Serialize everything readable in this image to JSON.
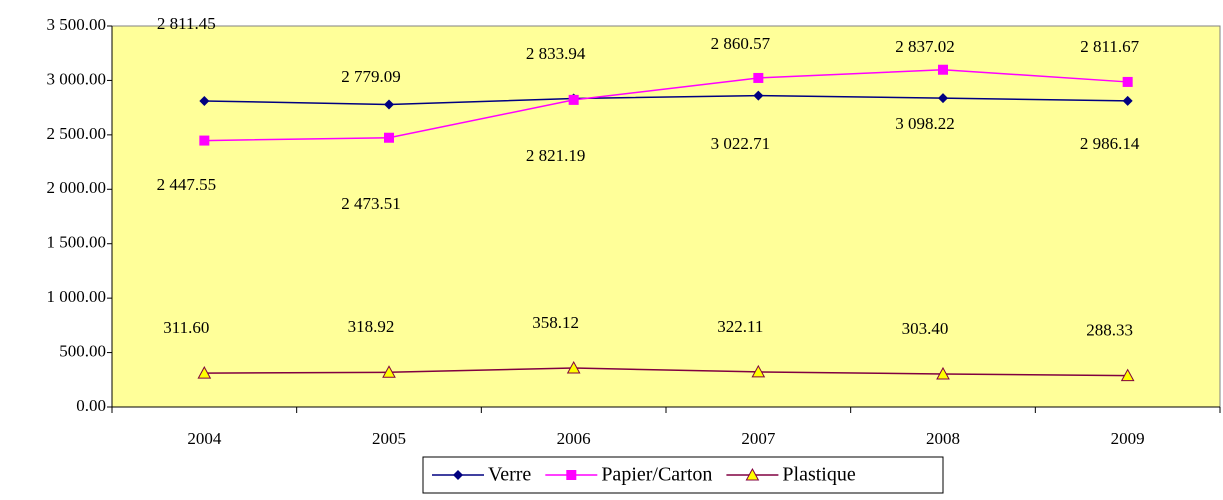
{
  "chart_data": {
    "type": "line",
    "categories": [
      "2004",
      "2005",
      "2006",
      "2007",
      "2008",
      "2009"
    ],
    "series": [
      {
        "name": "Verre",
        "color": "#000080",
        "marker": "diamond",
        "values": [
          2811.45,
          2779.09,
          2833.94,
          2860.57,
          2837.02,
          2811.67
        ],
        "value_labels": [
          "2 811.45",
          "2 779.09",
          "2 833.94",
          "2 860.57",
          "2 837.02",
          "2 811.67"
        ]
      },
      {
        "name": "Papier/Carton",
        "color": "#ff00ff",
        "marker": "square",
        "values": [
          2447.55,
          2473.51,
          2821.19,
          3022.71,
          3098.22,
          2986.14
        ],
        "value_labels": [
          "2 447.55",
          "2 473.51",
          "2 821.19",
          "3 022.71",
          "3 098.22",
          "2 986.14"
        ]
      },
      {
        "name": "Plastique",
        "color": "#800040",
        "marker": "triangle",
        "values": [
          311.6,
          318.92,
          358.12,
          322.11,
          303.4,
          288.33
        ],
        "value_labels": [
          "311.60",
          "318.92",
          "358.12",
          "322.11",
          "303.40",
          "288.33"
        ]
      }
    ],
    "ylim": [
      0,
      3500
    ],
    "yticks": [
      {
        "value": 0,
        "label": "0.00"
      },
      {
        "value": 500,
        "label": "500.00"
      },
      {
        "value": 1000,
        "label": "1 000.00"
      },
      {
        "value": 1500,
        "label": "1 500.00"
      },
      {
        "value": 2000,
        "label": "2 000.00"
      },
      {
        "value": 2500,
        "label": "2 500.00"
      },
      {
        "value": 3000,
        "label": "3 000.00"
      },
      {
        "value": 3500,
        "label": "3 500.00"
      }
    ],
    "legend": "bottom"
  }
}
